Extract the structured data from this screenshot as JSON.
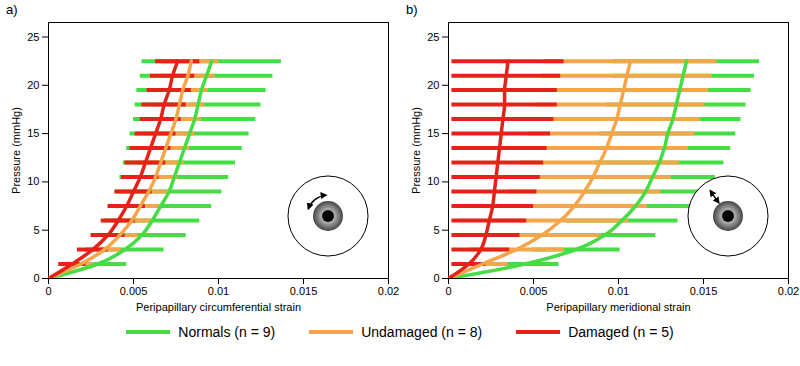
{
  "chart_data": [
    {
      "type": "line",
      "title": "a)",
      "x_label": "Peripapillary circumferential strain",
      "y_label": "Pressure (mmHg)",
      "xlim": [
        0,
        0.02
      ],
      "xticks": [
        0,
        0.005,
        0.01,
        0.015,
        0.02
      ],
      "ylim": [
        0,
        26.5
      ],
      "yticks": [
        0,
        5,
        10,
        15,
        20,
        25
      ],
      "grid": false,
      "legend": "bottom",
      "pressure": [
        0,
        1.5,
        3,
        4.5,
        6,
        7.5,
        9,
        10.5,
        12,
        13.5,
        15,
        16.5,
        18,
        19.5,
        21,
        22.5
      ],
      "series": [
        {
          "name": "Normals (n = 9)",
          "color": "#44dd44",
          "values": [
            0,
            0.0029,
            0.0045,
            0.0055,
            0.0061,
            0.0066,
            0.0071,
            0.0074,
            0.0077,
            0.008,
            0.0083,
            0.0086,
            0.0088,
            0.009,
            0.0093,
            0.0096
          ],
          "error": [
            0,
            0.0017,
            0.0023,
            0.0026,
            0.0028,
            0.003,
            0.0031,
            0.0032,
            0.0033,
            0.0034,
            0.0035,
            0.0036,
            0.0037,
            0.0038,
            0.0039,
            0.0041
          ]
        },
        {
          "name": "Undamaged (n = 8)",
          "color": "#f5a54a",
          "values": [
            0,
            0.0019,
            0.0033,
            0.0042,
            0.0049,
            0.0054,
            0.0059,
            0.0063,
            0.0066,
            0.0069,
            0.0072,
            0.0075,
            0.0077,
            0.0079,
            0.0082,
            0.0084
          ],
          "error": [
            0,
            0.0008,
            0.001,
            0.0011,
            0.0012,
            0.0012,
            0.0013,
            0.0013,
            0.0014,
            0.0014,
            0.0014,
            0.0015,
            0.0015,
            0.0015,
            0.0016,
            0.0016
          ]
        },
        {
          "name": "Damaged (n = 5)",
          "color": "#e52219",
          "values": [
            0,
            0.0014,
            0.0026,
            0.0035,
            0.0041,
            0.0046,
            0.005,
            0.0054,
            0.0057,
            0.006,
            0.0063,
            0.0066,
            0.0068,
            0.0071,
            0.0073,
            0.0076
          ],
          "error": [
            0,
            0.0008,
            0.0009,
            0.001,
            0.001,
            0.0011,
            0.0011,
            0.0011,
            0.0012,
            0.0012,
            0.0012,
            0.0012,
            0.0013,
            0.0013,
            0.0013,
            0.0013
          ]
        }
      ]
    },
    {
      "type": "line",
      "title": "b)",
      "x_label": "Peripapillary meridional strain",
      "y_label": "Pressure (mmHg)",
      "xlim": [
        0,
        0.02
      ],
      "xticks": [
        0,
        0.005,
        0.01,
        0.015,
        0.02
      ],
      "ylim": [
        0,
        26.5
      ],
      "yticks": [
        0,
        5,
        10,
        15,
        20,
        25
      ],
      "grid": false,
      "legend": "bottom",
      "pressure": [
        0,
        1.5,
        3,
        4.5,
        6,
        7.5,
        9,
        10.5,
        12,
        13.5,
        15,
        16.5,
        18,
        19.5,
        21,
        22.5
      ],
      "series": [
        {
          "name": "Normals (n = 9)",
          "color": "#44dd44",
          "values": [
            0,
            0.0045,
            0.0075,
            0.0092,
            0.0102,
            0.011,
            0.0116,
            0.012,
            0.0124,
            0.0127,
            0.0129,
            0.0132,
            0.0134,
            0.0136,
            0.0138,
            0.014
          ],
          "error": [
            0,
            0.002,
            0.0026,
            0.003,
            0.0033,
            0.0035,
            0.0036,
            0.0037,
            0.0038,
            0.0039,
            0.004,
            0.004,
            0.0041,
            0.0042,
            0.0042,
            0.0043
          ]
        },
        {
          "name": "Undamaged (n = 8)",
          "color": "#f5a54a",
          "values": [
            0,
            0.002,
            0.004,
            0.0055,
            0.0066,
            0.0074,
            0.008,
            0.0085,
            0.0089,
            0.0093,
            0.0096,
            0.0099,
            0.0101,
            0.0103,
            0.0105,
            0.0107
          ],
          "error": [
            0,
            0.0015,
            0.0028,
            0.0035,
            0.004,
            0.0043,
            0.0045,
            0.0046,
            0.0047,
            0.0048,
            0.0049,
            0.0049,
            0.005,
            0.005,
            0.005,
            0.0051
          ]
        },
        {
          "name": "Damaged (n = 5)",
          "color": "#e52219",
          "values": [
            0,
            0.0012,
            0.0019,
            0.0022,
            0.0024,
            0.0026,
            0.0027,
            0.0028,
            0.0029,
            0.003,
            0.0031,
            0.0032,
            0.0033,
            0.0033,
            0.0034,
            0.0035
          ],
          "error": [
            0,
            0.001,
            0.0017,
            0.002,
            0.0022,
            0.0024,
            0.0025,
            0.0026,
            0.0027,
            0.0028,
            0.0029,
            0.003,
            0.0031,
            0.0031,
            0.0032,
            0.0033
          ]
        }
      ]
    }
  ]
}
